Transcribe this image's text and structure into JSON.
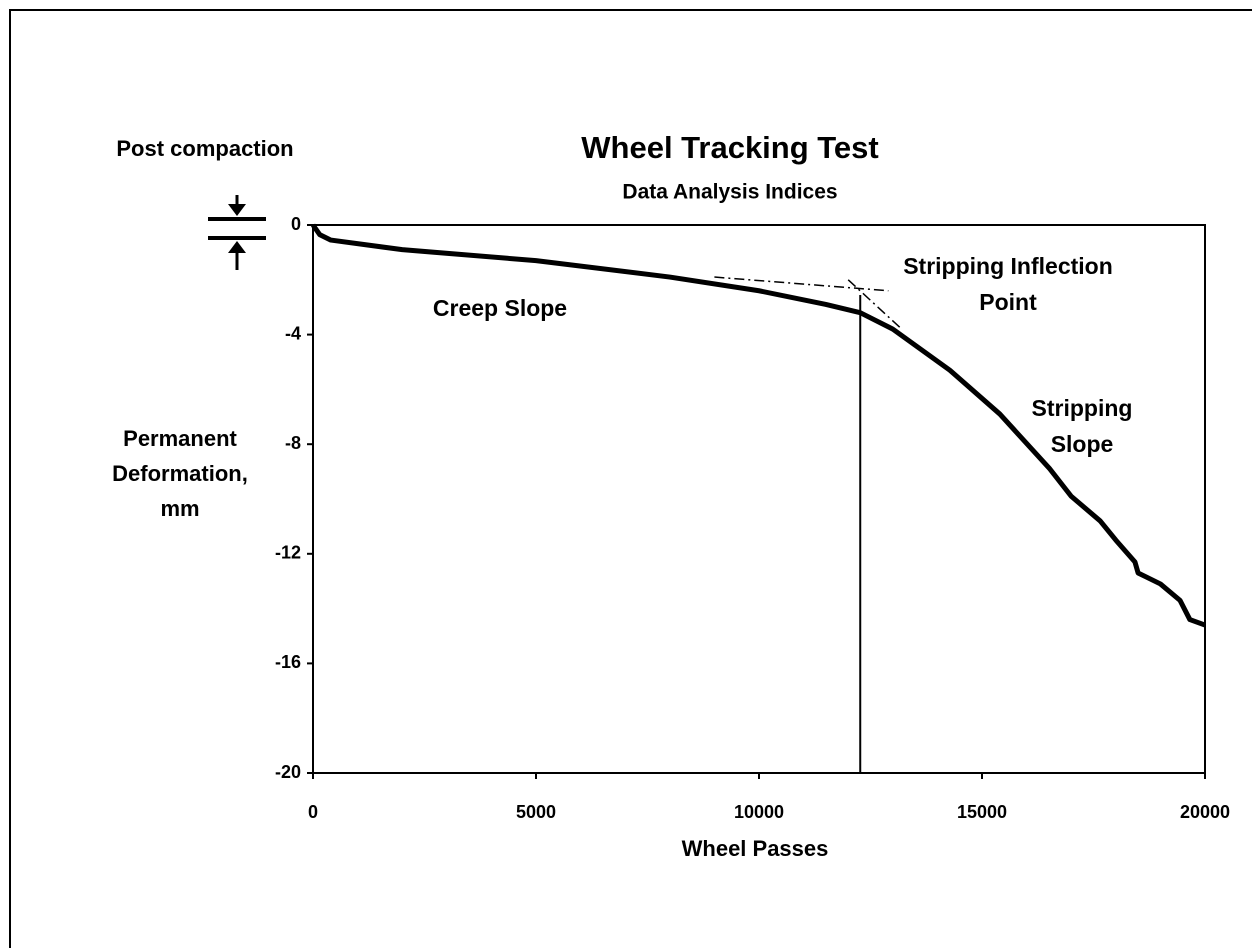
{
  "chart_data": {
    "type": "line",
    "title": "Wheel Tracking Test",
    "subtitle": "Data Analysis Indices",
    "xlabel": "Wheel Passes",
    "ylabel": [
      "Permanent",
      "Deformation,",
      "mm"
    ],
    "post_compaction_label": "Post compaction",
    "annotations": [
      "Creep Slope",
      [
        "Stripping Inflection",
        "Point"
      ],
      [
        "Stripping",
        "Slope"
      ]
    ],
    "x": [
      0,
      150,
      400,
      2000,
      5000,
      8000,
      10000,
      11500,
      12270,
      13000,
      14280,
      15400,
      16520,
      17000,
      17650,
      18000,
      18430,
      18500,
      19000,
      19440,
      19660,
      20000
    ],
    "series": [
      {
        "color": "#000000",
        "values": [
          0,
          -0.35,
          -0.55,
          -0.9,
          -1.3,
          -1.9,
          -2.4,
          -2.9,
          -3.2,
          -3.8,
          -5.3,
          -6.9,
          -8.9,
          -9.9,
          -10.8,
          -11.5,
          -12.3,
          -12.7,
          -13.1,
          -13.7,
          -14.4,
          -14.6
        ]
      }
    ],
    "inflection_x": 12270,
    "tangent_lines": [
      {
        "x": [
          9000,
          12900
        ],
        "y": [
          -1.9,
          -2.4
        ]
      },
      {
        "x": [
          12000,
          13200
        ],
        "y": [
          -2.0,
          -3.8
        ]
      }
    ],
    "xlim": [
      0,
      20000
    ],
    "xticks": [
      0,
      5000,
      10000,
      15000,
      20000
    ],
    "ylim": [
      -20,
      0
    ],
    "yticks": [
      0,
      -4,
      -8,
      -12,
      -16,
      -20
    ]
  }
}
